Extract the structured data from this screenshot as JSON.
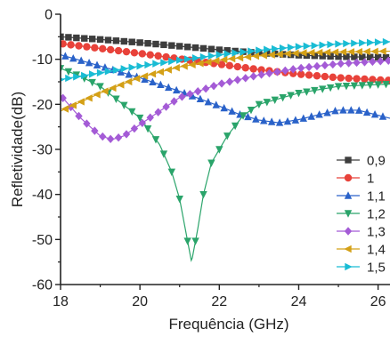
{
  "chart_data": {
    "type": "line",
    "title": "",
    "xlabel": "Frequência (GHz)",
    "ylabel": "Refletividade(dB)",
    "xlim": [
      18,
      26.3
    ],
    "ylim": [
      -60,
      0
    ],
    "xticks": [
      "18",
      "20",
      "22",
      "24",
      "26"
    ],
    "yticks": [
      "0",
      "-10",
      "-20",
      "-30",
      "-40",
      "-50",
      "-60"
    ],
    "grid": false,
    "legend_position": "right",
    "series": [
      {
        "name": "0,9",
        "color": "#3d3d3d",
        "marker": "square",
        "x": [
          18,
          19,
          20,
          21,
          22,
          23,
          24,
          25,
          26.3
        ],
        "y": [
          -5.0,
          -5.6,
          -6.3,
          -7.1,
          -7.9,
          -8.6,
          -9.1,
          -9.4,
          -9.6
        ]
      },
      {
        "name": "1",
        "color": "#e8423a",
        "marker": "circle",
        "x": [
          18,
          19,
          20,
          21,
          22,
          23,
          24,
          25,
          26.3
        ],
        "y": [
          -6.5,
          -7.6,
          -8.7,
          -9.9,
          -11.1,
          -12.3,
          -13.3,
          -14.1,
          -14.7
        ]
      },
      {
        "name": "1,1",
        "color": "#2a62c9",
        "marker": "triangle-up",
        "x": [
          18,
          19,
          20,
          21,
          22,
          22.5,
          23,
          23.5,
          24,
          24.5,
          25,
          25.5,
          26.3
        ],
        "y": [
          -9.0,
          -11.5,
          -14.1,
          -17.1,
          -20.4,
          -22.2,
          -23.5,
          -24.1,
          -23.4,
          -22.3,
          -21.3,
          -21.3,
          -23.1
        ]
      },
      {
        "name": "1,2",
        "color": "#2aa46a",
        "marker": "triangle-down",
        "x": [
          18,
          18.5,
          19,
          19.5,
          20,
          20.5,
          20.8,
          21.0,
          21.15,
          21.3,
          21.45,
          21.6,
          21.8,
          22.2,
          22.6,
          23,
          24,
          25,
          26.3
        ],
        "y": [
          -12.0,
          -13.8,
          -16.0,
          -19.5,
          -23.0,
          -29.0,
          -35.0,
          -41.0,
          -48.0,
          -55.0,
          -48.0,
          -40.0,
          -33.0,
          -27.0,
          -22.5,
          -20.0,
          -17.5,
          -16.0,
          -15.5
        ]
      },
      {
        "name": "1,3",
        "color": "#a45bd6",
        "marker": "diamond",
        "x": [
          18,
          18.5,
          19,
          19.3,
          19.6,
          20,
          20.5,
          21,
          22,
          23,
          24,
          25,
          26.3
        ],
        "y": [
          -18.0,
          -23.0,
          -27.0,
          -27.8,
          -27.0,
          -24.5,
          -21.5,
          -18.5,
          -15.5,
          -13.5,
          -12.0,
          -11.0,
          -10.3
        ]
      },
      {
        "name": "1,4",
        "color": "#d4a017",
        "marker": "triangle-left",
        "x": [
          18,
          19,
          20,
          21,
          22,
          23,
          24,
          25,
          26.3
        ],
        "y": [
          -21.5,
          -17.5,
          -14.0,
          -11.7,
          -10.2,
          -9.2,
          -8.6,
          -8.4,
          -8.2
        ]
      },
      {
        "name": "1,5",
        "color": "#19bcd4",
        "marker": "triangle-right",
        "x": [
          18,
          19,
          20,
          21,
          22,
          23,
          24,
          25,
          26.3
        ],
        "y": [
          -14.5,
          -13.0,
          -11.5,
          -10.2,
          -9.0,
          -8.0,
          -7.2,
          -6.6,
          -6.1
        ]
      }
    ]
  }
}
